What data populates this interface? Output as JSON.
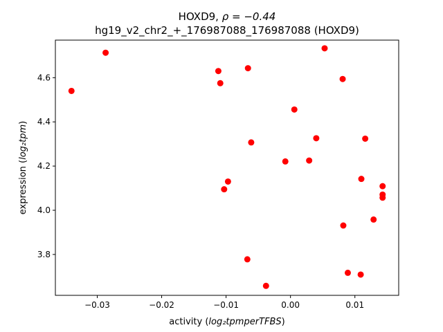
{
  "chart_data": {
    "type": "scatter",
    "title_line1_prefix": "HOXD9, ",
    "title_line1_math": "ρ = −0.44",
    "title_line2": "hg19_v2_chr2_+_176987088_176987088 (HOXD9)",
    "xlabel_prefix": "activity (",
    "xlabel_math": "log₂tpmperTFBS",
    "xlabel_suffix": ")",
    "ylabel_prefix": "expression (",
    "ylabel_math": "log₂tpm",
    "ylabel_suffix": ")",
    "xlim": [
      -0.0365,
      0.0168
    ],
    "ylim": [
      3.615,
      4.77
    ],
    "xticks": [
      -0.03,
      -0.02,
      -0.01,
      0.0,
      0.01
    ],
    "xtick_labels": [
      "−0.03",
      "−0.02",
      "−0.01",
      "0.00",
      "0.01"
    ],
    "yticks": [
      3.8,
      4.0,
      4.2,
      4.4,
      4.6
    ],
    "ytick_labels": [
      "3.8",
      "4.0",
      "4.2",
      "4.4",
      "4.6"
    ],
    "marker_color": "#ff0000",
    "grid": false,
    "points": [
      {
        "x": -0.034,
        "y": 4.54
      },
      {
        "x": -0.0287,
        "y": 4.713
      },
      {
        "x": -0.0112,
        "y": 4.63
      },
      {
        "x": -0.0109,
        "y": 4.575
      },
      {
        "x": -0.0103,
        "y": 4.095
      },
      {
        "x": -0.0097,
        "y": 4.13
      },
      {
        "x": -0.0067,
        "y": 3.778
      },
      {
        "x": -0.0066,
        "y": 4.643
      },
      {
        "x": -0.0061,
        "y": 4.307
      },
      {
        "x": -0.0038,
        "y": 3.658
      },
      {
        "x": -0.0008,
        "y": 4.221
      },
      {
        "x": 0.0006,
        "y": 4.456
      },
      {
        "x": 0.0029,
        "y": 4.225
      },
      {
        "x": 0.004,
        "y": 4.326
      },
      {
        "x": 0.0053,
        "y": 4.733
      },
      {
        "x": 0.0081,
        "y": 4.594
      },
      {
        "x": 0.0082,
        "y": 3.931
      },
      {
        "x": 0.0089,
        "y": 3.717
      },
      {
        "x": 0.0109,
        "y": 3.709
      },
      {
        "x": 0.011,
        "y": 4.142
      },
      {
        "x": 0.0116,
        "y": 4.324
      },
      {
        "x": 0.0129,
        "y": 3.958
      },
      {
        "x": 0.0143,
        "y": 4.109
      },
      {
        "x": 0.0143,
        "y": 4.071
      },
      {
        "x": 0.0143,
        "y": 4.057
      }
    ]
  }
}
